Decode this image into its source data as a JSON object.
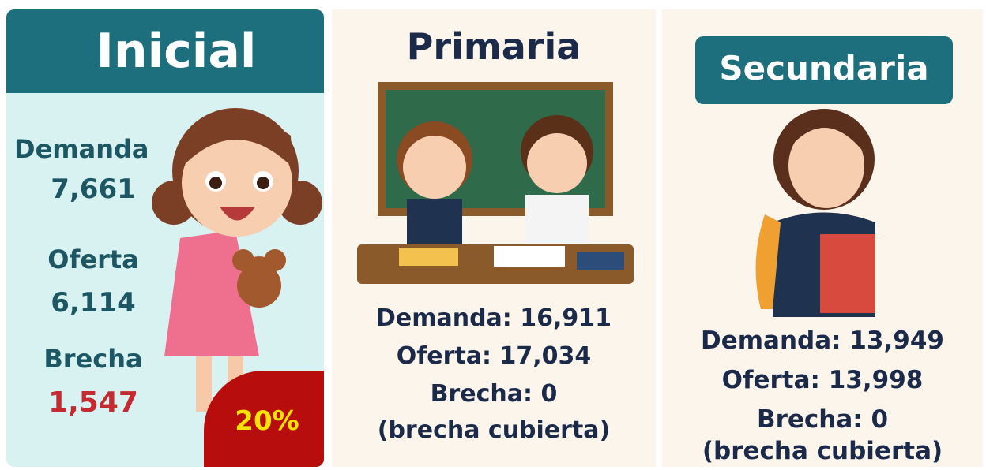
{
  "panels": [
    {
      "title": "Inicial",
      "demanda_label": "Demanda",
      "demanda": "7,661",
      "oferta_label": "Oferta",
      "oferta": "6,114",
      "brecha_label": "Brecha",
      "brecha": "1,547",
      "badge": "20%"
    },
    {
      "title": "Primaria",
      "lines": [
        "Demanda: 16,911",
        "Oferta: 17,034",
        "Brecha: 0",
        "(brecha cubierta)"
      ]
    },
    {
      "title": "Secundaria",
      "lines": [
        "Demanda: 13,949",
        "Oferta: 13,998",
        "Brecha: 0",
        "(brecha cubierta)"
      ]
    }
  ]
}
